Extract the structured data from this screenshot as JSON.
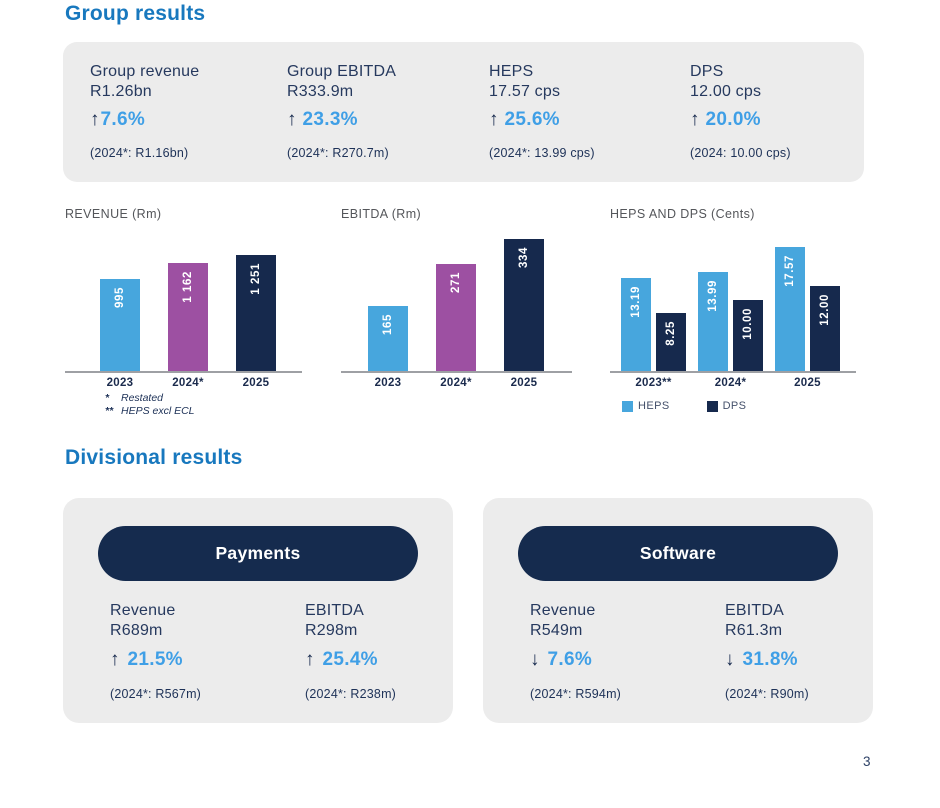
{
  "colors": {
    "heading_blue": "#1878BE",
    "navy": "#16294D",
    "light_blue": "#47A6DD",
    "accent_blue": "#3F9FE6",
    "purple": "#9D50A2",
    "panel_gray": "#ECECEC",
    "axis_gray": "#9EA0A4",
    "chart_title_gray": "#54565A"
  },
  "group_results": {
    "heading": "Group results",
    "kpis": [
      {
        "label_line1": "Group revenue",
        "label_line2": "R1.26bn",
        "arrow": "↑",
        "change": "7.6%",
        "prior": "(2024*: R1.16bn)"
      },
      {
        "label_line1": "Group EBITDA",
        "label_line2": "R333.9m",
        "arrow": "↑",
        "change": "23.3%",
        "prior": "(2024*: R270.7m)"
      },
      {
        "label_line1": "HEPS",
        "label_line2": "17.57 cps",
        "arrow": "↑",
        "change": "25.6%",
        "prior": "(2024*: 13.99 cps)"
      },
      {
        "label_line1": "DPS",
        "label_line2": "12.00 cps",
        "arrow": "↑",
        "change": "20.0%",
        "prior": "(2024: 10.00 cps)"
      }
    ]
  },
  "chart_data": [
    {
      "type": "bar",
      "title": "REVENUE (Rm)",
      "categories": [
        "2023",
        "2024*",
        "2025"
      ],
      "values": [
        995,
        1162,
        1251
      ],
      "value_labels": [
        "995",
        "1 162",
        "1 251"
      ],
      "bar_colors": [
        "#47A6DD",
        "#9D50A2",
        "#16294D"
      ],
      "ylim": [
        0,
        1251
      ],
      "grid": false,
      "footnotes": [
        {
          "marker": "*",
          "text": "Restated"
        },
        {
          "marker": "**",
          "text": "HEPS excl ECL"
        }
      ]
    },
    {
      "type": "bar",
      "title": "EBITDA (Rm)",
      "categories": [
        "2023",
        "2024*",
        "2025"
      ],
      "values": [
        165,
        271,
        334
      ],
      "value_labels": [
        "165",
        "271",
        "334"
      ],
      "bar_colors": [
        "#47A6DD",
        "#9D50A2",
        "#16294D"
      ],
      "ylim": [
        0,
        334
      ],
      "grid": false
    },
    {
      "type": "bar",
      "title": "HEPS AND DPS (Cents)",
      "categories": [
        "2023**",
        "2024*",
        "2025"
      ],
      "series": [
        {
          "name": "HEPS",
          "color": "#47A6DD",
          "values": [
            13.19,
            13.99,
            17.57
          ],
          "value_labels": [
            "13.19",
            "13.99",
            "17.57"
          ]
        },
        {
          "name": "DPS",
          "color": "#16294D",
          "values": [
            8.25,
            10.0,
            12.0
          ],
          "value_labels": [
            "8.25",
            "10.00",
            "12.00"
          ]
        }
      ],
      "ylim": [
        0,
        17.57
      ],
      "grid": false,
      "legend_position": "bottom-left"
    }
  ],
  "divisional_results": {
    "heading": "Divisional results",
    "divisions": [
      {
        "name": "Payments",
        "metrics": [
          {
            "label": "Revenue",
            "value": "R689m",
            "arrow": "↑",
            "change": "21.5%",
            "prior": "(2024*: R567m)"
          },
          {
            "label": "EBITDA",
            "value": "R298m",
            "arrow": "↑",
            "change": "25.4%",
            "prior": "(2024*: R238m)"
          }
        ]
      },
      {
        "name": "Software",
        "metrics": [
          {
            "label": "Revenue",
            "value": "R549m",
            "arrow": "↓",
            "change": "7.6%",
            "prior": "(2024*: R594m)"
          },
          {
            "label": "EBITDA",
            "value": "R61.3m",
            "arrow": "↓",
            "change": "31.8%",
            "prior": "(2024*: R90m)"
          }
        ]
      }
    ]
  },
  "page": {
    "number": "3"
  }
}
